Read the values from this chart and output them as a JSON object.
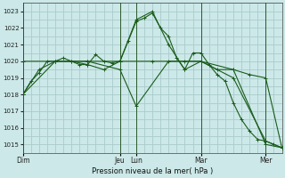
{
  "background_color": "#cce8e8",
  "grid_color": "#aacccc",
  "line_color": "#1a5c1a",
  "marker_color": "#1a5c1a",
  "xlabel": "Pression niveau de la mer( hPa )",
  "ylim": [
    1014.5,
    1023.5
  ],
  "yticks": [
    1015,
    1016,
    1017,
    1018,
    1019,
    1020,
    1021,
    1022,
    1023
  ],
  "xlim": [
    0,
    192
  ],
  "day_labels": [
    "Dim",
    "Jeu",
    "Lun",
    "Mar",
    "Mer"
  ],
  "day_positions": [
    0,
    72,
    84,
    132,
    180
  ],
  "vline_positions": [
    0,
    72,
    84,
    132,
    180
  ],
  "series": [
    {
      "x": [
        0,
        6,
        12,
        18,
        24,
        30,
        36,
        42,
        48,
        54,
        60,
        66,
        72,
        78,
        84,
        90,
        96,
        102,
        108,
        114,
        120,
        126,
        132,
        138,
        144,
        150,
        156,
        162,
        168,
        174,
        180,
        186,
        192
      ],
      "y": [
        1018.0,
        1018.8,
        1019.3,
        1020.0,
        1020.0,
        1020.2,
        1020.0,
        1019.8,
        1019.8,
        1020.4,
        1020.0,
        1019.9,
        1020.0,
        1021.2,
        1022.4,
        1022.6,
        1022.9,
        1022.0,
        1021.5,
        1020.2,
        1019.5,
        1020.5,
        1020.5,
        1019.8,
        1019.2,
        1018.8,
        1017.5,
        1016.5,
        1015.8,
        1015.3,
        1015.2,
        1015.0,
        1014.8
      ]
    },
    {
      "x": [
        0,
        12,
        24,
        36,
        48,
        60,
        72,
        84,
        96,
        108,
        120,
        132,
        144,
        156,
        168,
        180,
        192
      ],
      "y": [
        1018.0,
        1019.5,
        1020.0,
        1020.0,
        1019.8,
        1019.5,
        1020.0,
        1022.5,
        1023.0,
        1021.0,
        1019.5,
        1020.0,
        1019.5,
        1019.5,
        1019.2,
        1019.0,
        1014.8
      ]
    },
    {
      "x": [
        0,
        24,
        48,
        72,
        84,
        108,
        132,
        156,
        180,
        192
      ],
      "y": [
        1018.0,
        1020.0,
        1020.0,
        1019.5,
        1017.3,
        1020.0,
        1020.0,
        1019.0,
        1015.2,
        1014.8
      ]
    },
    {
      "x": [
        0,
        24,
        48,
        72,
        96,
        120,
        132,
        156,
        180,
        192
      ],
      "y": [
        1020.0,
        1020.0,
        1020.0,
        1020.0,
        1020.0,
        1020.0,
        1020.0,
        1019.5,
        1015.0,
        1014.8
      ]
    }
  ]
}
